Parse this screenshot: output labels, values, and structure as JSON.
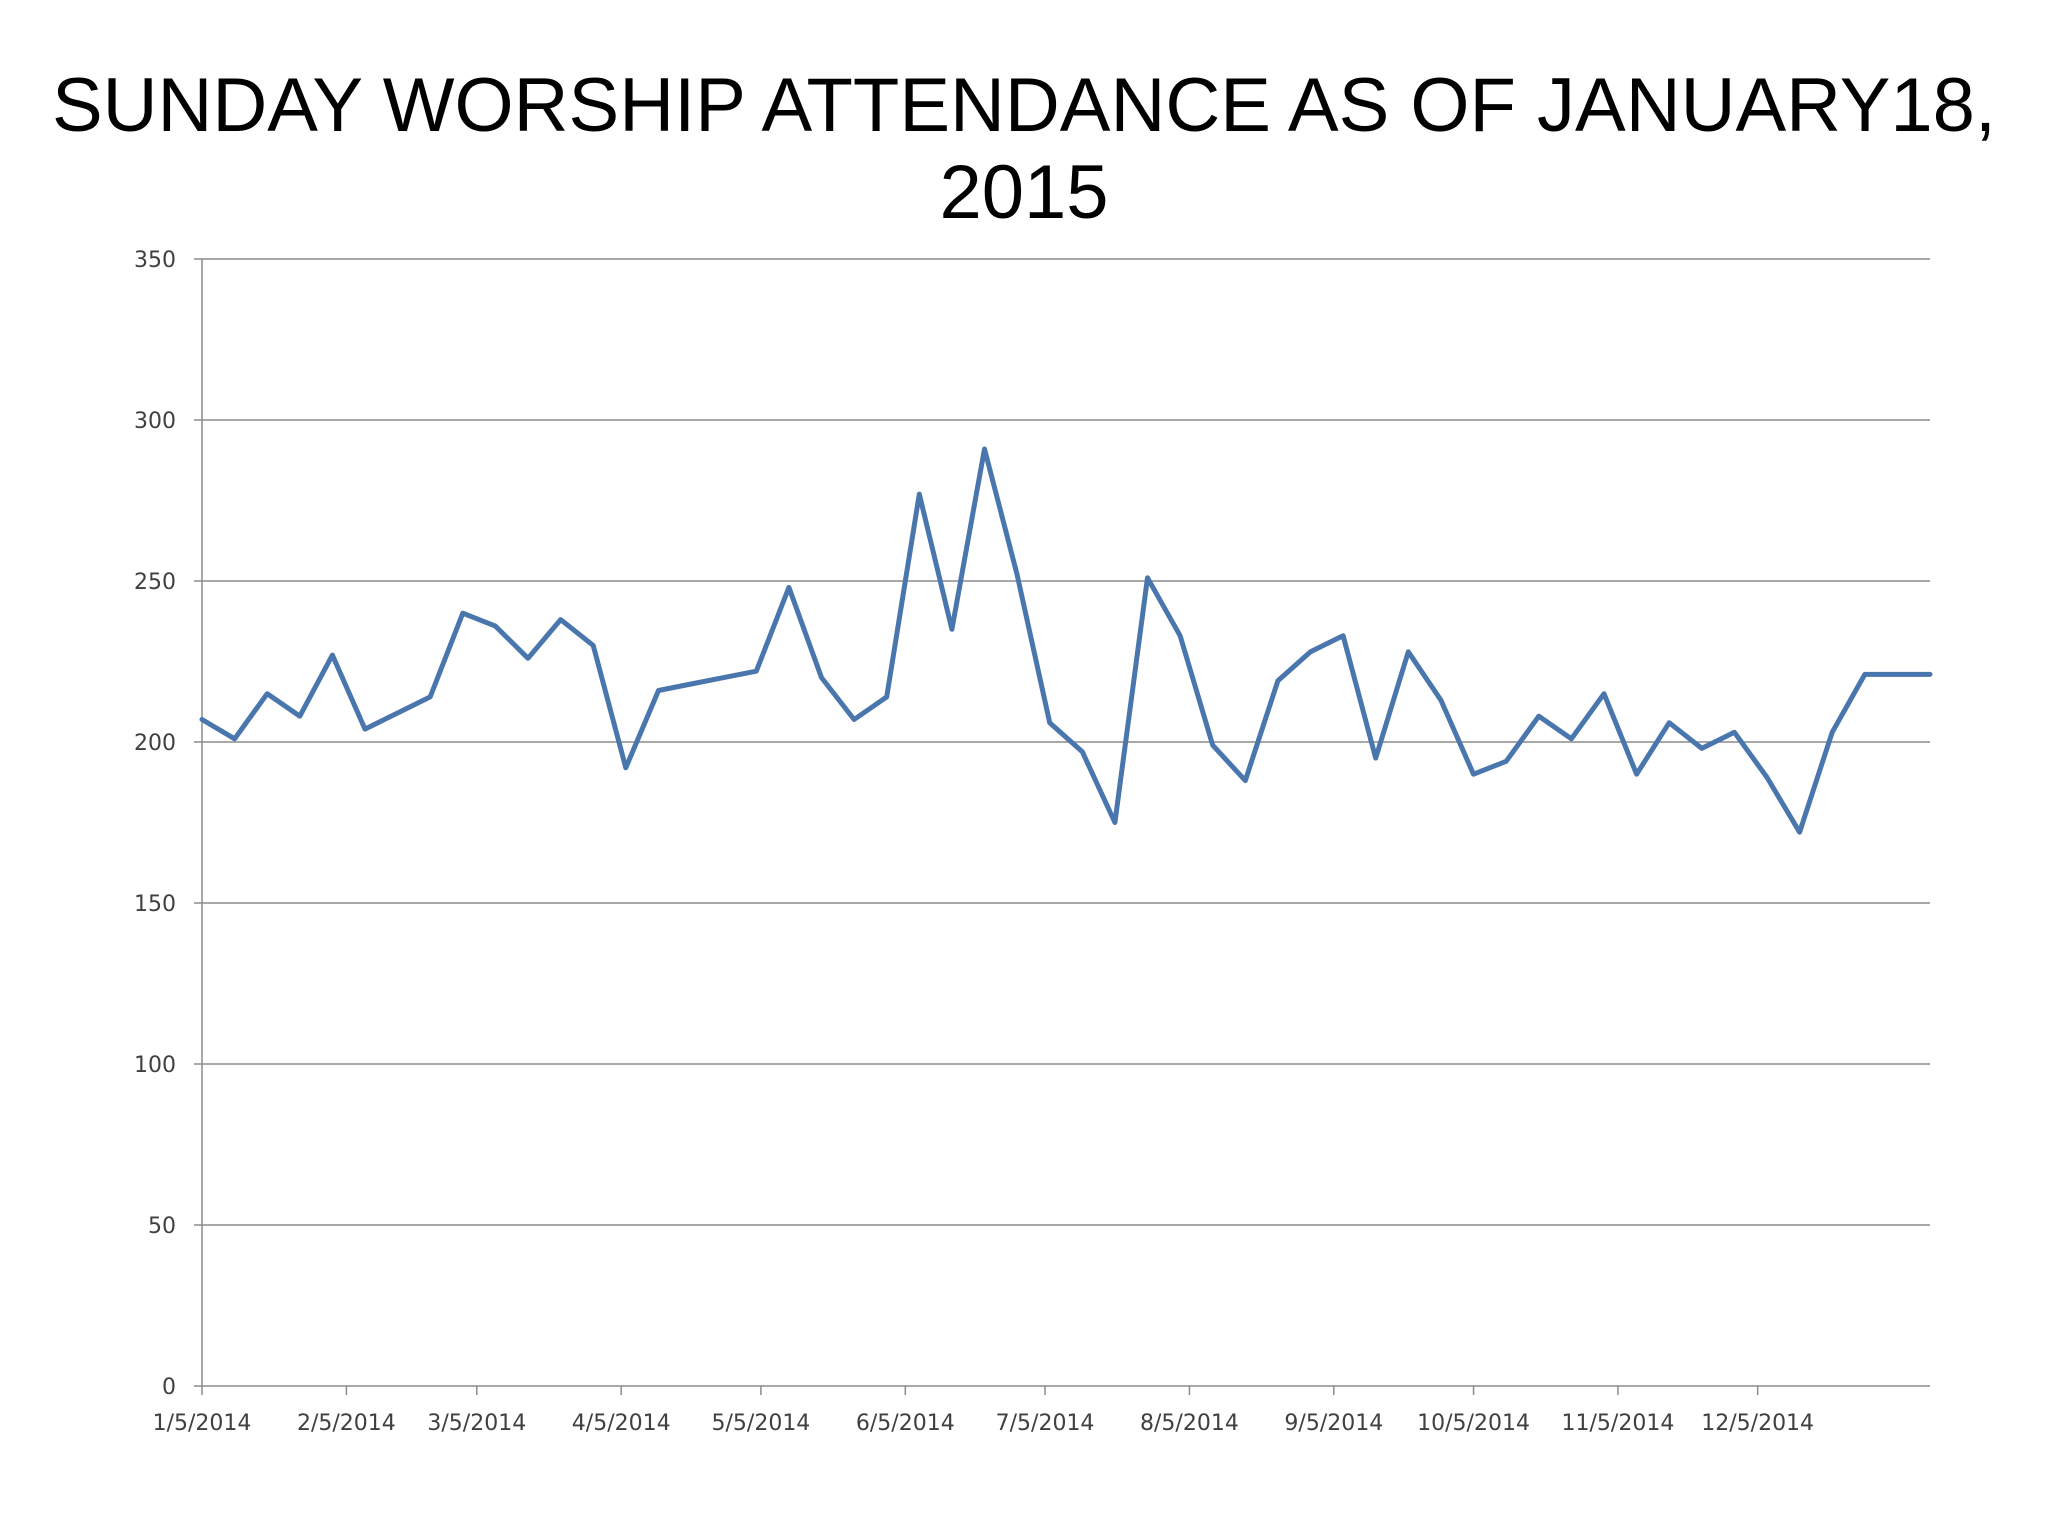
{
  "chart_data": {
    "type": "line",
    "title": "SUNDAY WORSHIP ATTENDANCE AS OF JANUARY18, 2015",
    "xlabel": "",
    "ylabel": "",
    "ylim": [
      0,
      350
    ],
    "yticks": [
      0,
      50,
      100,
      150,
      200,
      250,
      300,
      350
    ],
    "x_tick_labels": [
      "1/5/2014",
      "2/5/2014",
      "3/5/2014",
      "4/5/2014",
      "5/5/2014",
      "6/5/2014",
      "7/5/2014",
      "8/5/2014",
      "9/5/2014",
      "10/5/2014",
      "11/5/2014",
      "12/5/2014"
    ],
    "grid": true,
    "legend": "none",
    "line_color": "#4A76AE",
    "series": [
      {
        "x": [
          "2014-01-05",
          "2014-01-12",
          "2014-01-19",
          "2014-01-26",
          "2014-02-02",
          "2014-02-09",
          "2014-02-16",
          "2014-02-23",
          "2014-03-02",
          "2014-03-09",
          "2014-03-16",
          "2014-03-23",
          "2014-03-30",
          "2014-04-06",
          "2014-04-13",
          "2014-04-20",
          "2014-04-27",
          "2014-05-04",
          "2014-05-11",
          "2014-05-18",
          "2014-05-25",
          "2014-06-01",
          "2014-06-08",
          "2014-06-15",
          "2014-06-22",
          "2014-06-29",
          "2014-07-06",
          "2014-07-13",
          "2014-07-20",
          "2014-07-27",
          "2014-08-03",
          "2014-08-10",
          "2014-08-17",
          "2014-08-24",
          "2014-08-31",
          "2014-09-07",
          "2014-09-14",
          "2014-09-21",
          "2014-09-28",
          "2014-10-05",
          "2014-10-12",
          "2014-10-19",
          "2014-10-26",
          "2014-11-02",
          "2014-11-09",
          "2014-11-16",
          "2014-11-23",
          "2014-11-30",
          "2014-12-07",
          "2014-12-14",
          "2014-12-21",
          "2014-12-28",
          "2015-01-04",
          "2015-01-11"
        ],
        "values": [
          207,
          201,
          215,
          208,
          227,
          204,
          209,
          214,
          240,
          236,
          226,
          238,
          230,
          192,
          216,
          218,
          220,
          222,
          248,
          220,
          207,
          214,
          277,
          235,
          291,
          252,
          206,
          197,
          175,
          251,
          233,
          199,
          188,
          219,
          228,
          233,
          195,
          228,
          213,
          190,
          194,
          208,
          201,
          215,
          190,
          206,
          198,
          203,
          189,
          172,
          203,
          221,
          221,
          221
        ]
      }
    ]
  }
}
